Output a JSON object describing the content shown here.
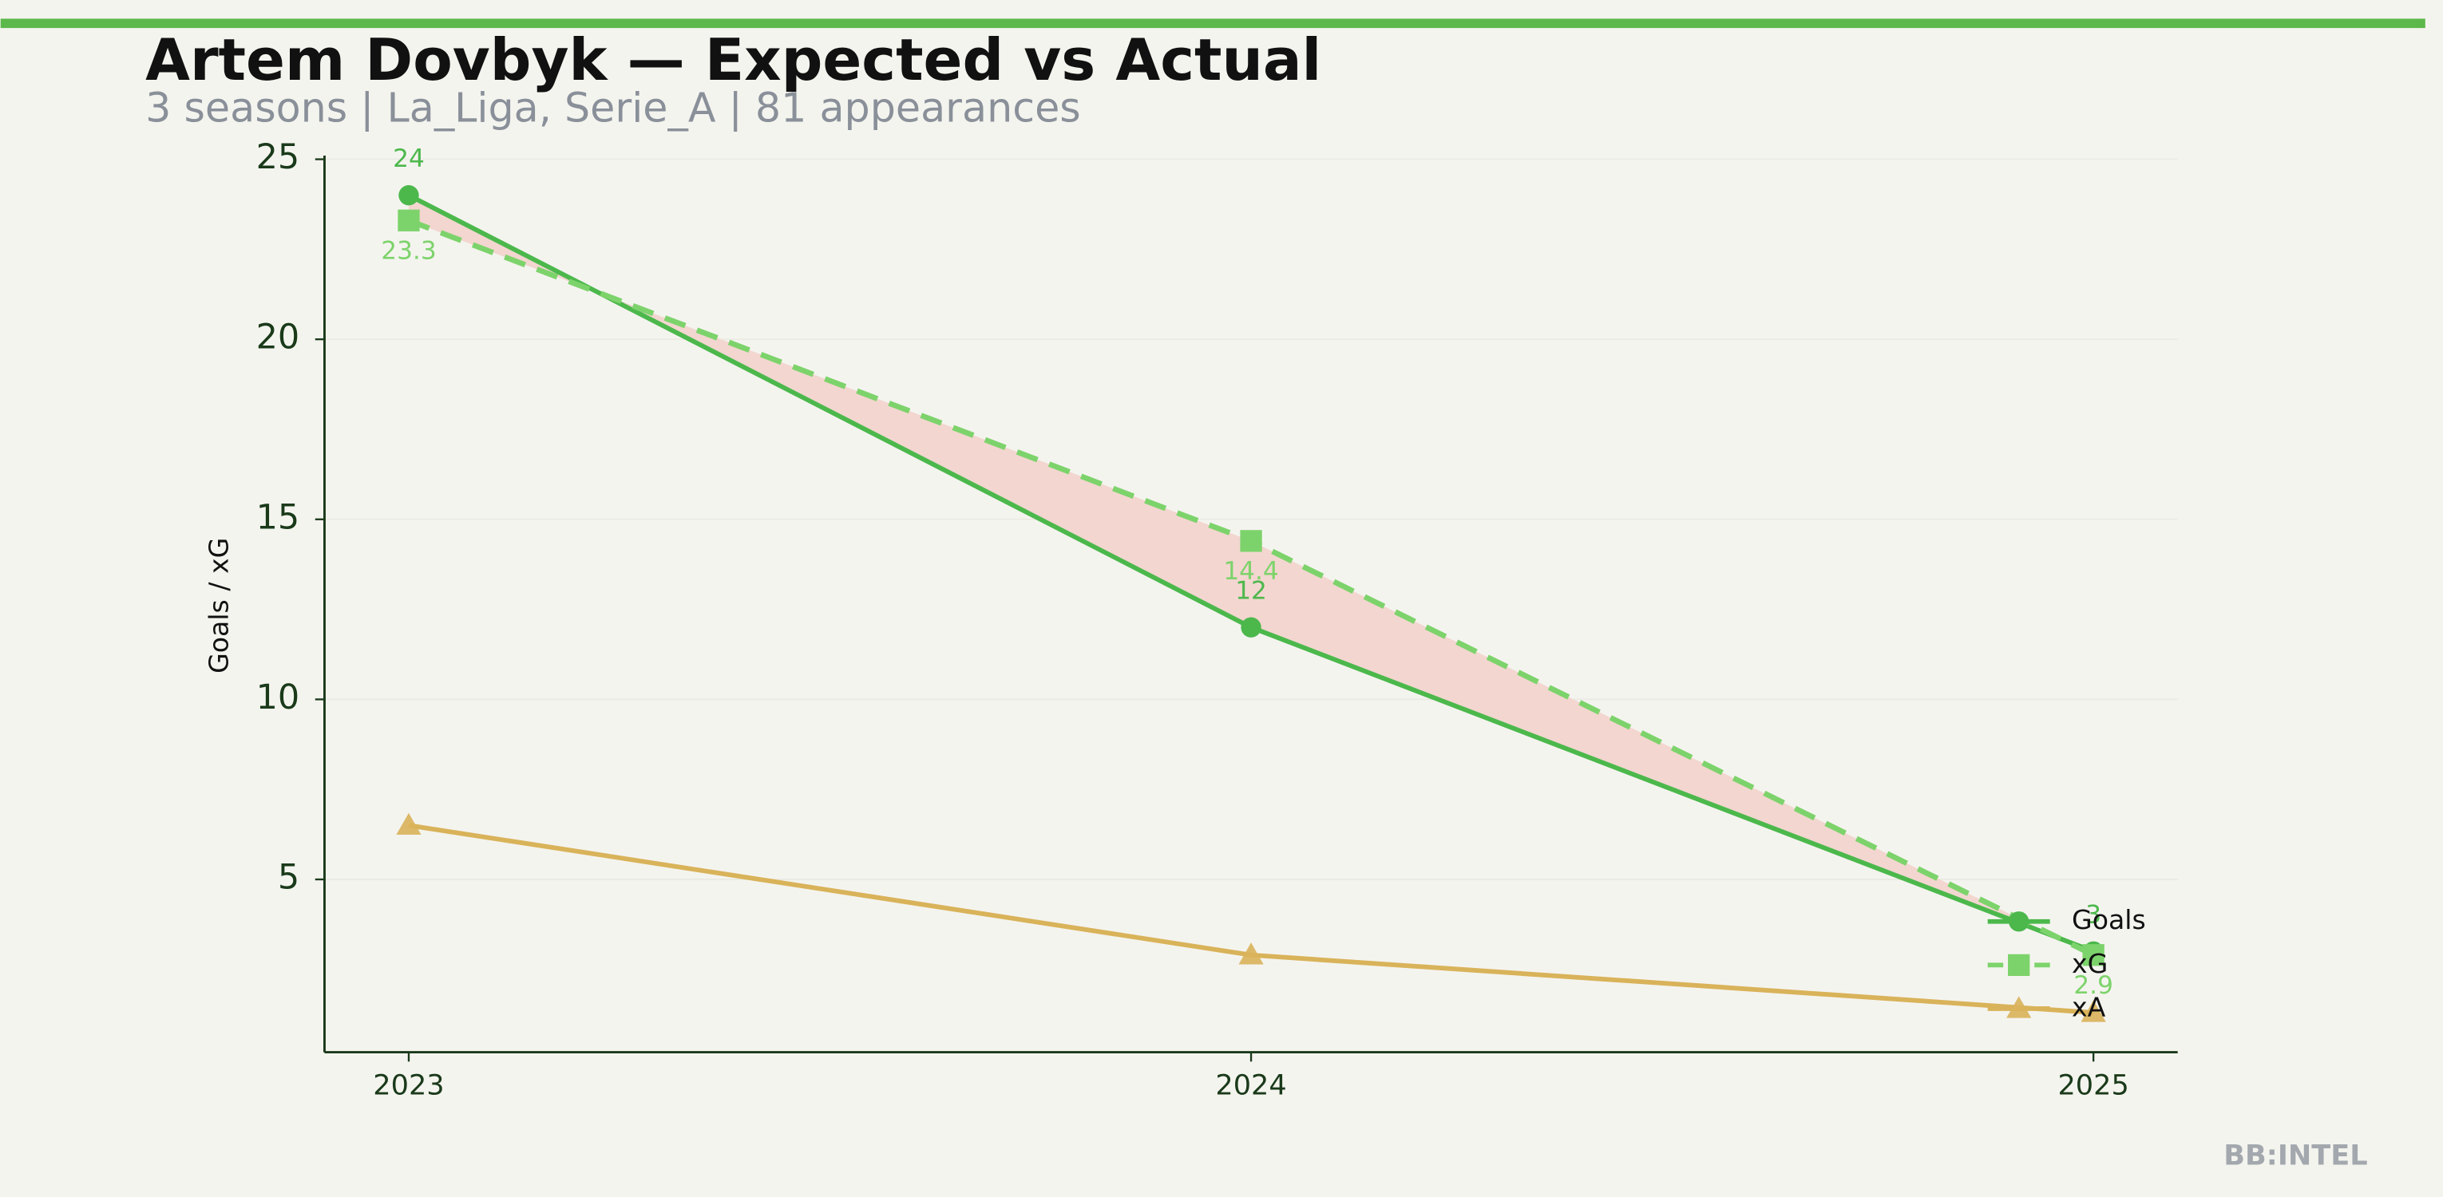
{
  "chart_data": {
    "type": "line",
    "title": "Artem Dovbyk — Expected vs Actual",
    "subtitle": "3 seasons | La_Liga, Serie_A | 81 appearances",
    "y_label": "Goals / xG",
    "x": [
      2023,
      2024,
      2025
    ],
    "xlim": [
      2022.9,
      2025.1
    ],
    "xticks": [
      2023,
      2024,
      2025
    ],
    "ylim": [
      0.2,
      25.1
    ],
    "yticks": [
      5,
      10,
      15,
      20,
      25
    ],
    "grid": true,
    "legend": "lower right",
    "fill_between": {
      "series": [
        0,
        1
      ],
      "color": "#f3d6d0"
    },
    "series": [
      {
        "name": "Goals",
        "color": "#4cb84c",
        "marker": "circle",
        "dashed": false,
        "labels": "above",
        "values": [
          24,
          12,
          3
        ]
      },
      {
        "name": "xG",
        "color": "#7dd36b",
        "marker": "square",
        "dashed": true,
        "labels": "below",
        "values": [
          23.3,
          14.4,
          2.9
        ]
      },
      {
        "name": "xA",
        "color": "#d9b35a",
        "marker": "triangle",
        "dashed": false,
        "labels": "none",
        "values": [
          6.5,
          2.9,
          1.3
        ]
      }
    ]
  },
  "footer": "BB:INTEL"
}
